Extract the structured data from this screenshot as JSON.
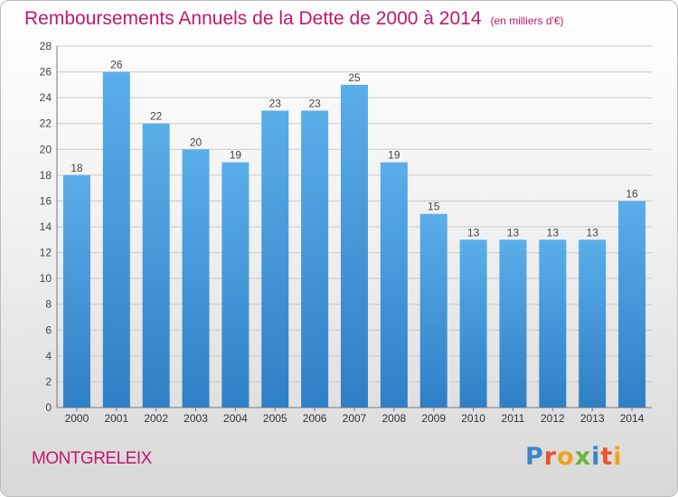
{
  "chart_data": {
    "type": "bar",
    "title": "Remboursements Annuels de la Dette de 2000 à 2014",
    "subtitle": "(en milliers d'€)",
    "categories": [
      "2000",
      "2001",
      "2002",
      "2003",
      "2004",
      "2005",
      "2006",
      "2007",
      "2008",
      "2009",
      "2010",
      "2011",
      "2012",
      "2013",
      "2014"
    ],
    "values": [
      18,
      26,
      22,
      20,
      19,
      23,
      23,
      25,
      19,
      15,
      13,
      13,
      13,
      13,
      16
    ],
    "y_ticks": [
      0,
      2,
      4,
      6,
      8,
      10,
      12,
      14,
      16,
      18,
      20,
      22,
      24,
      26,
      28
    ],
    "ylim": [
      0,
      28
    ],
    "grid": true,
    "bar_color_top": "#5aaee9",
    "bar_color_bottom": "#2f7fc6",
    "title_color": "#c0196b"
  },
  "footer": {
    "city": "MONTGRELEIX",
    "logo_letters": [
      "P",
      "r",
      "o",
      "x",
      "i",
      "t",
      "i"
    ],
    "logo_colors": [
      "#3a86c8",
      "#e9542d",
      "#f0a21b",
      "#6ab536",
      "#3a86c8",
      "#e9542d",
      "#f0a21b"
    ]
  }
}
